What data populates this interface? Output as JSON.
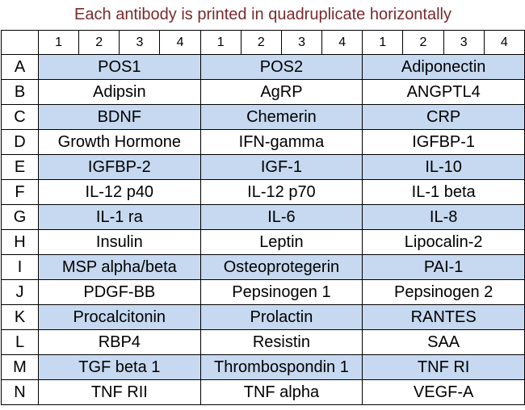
{
  "title": "Each antibody is printed in quadruplicate horizontally",
  "header": [
    [
      "1",
      "2",
      "3",
      "4"
    ],
    [
      "1",
      "2",
      "3",
      "4"
    ],
    [
      "1",
      "2",
      "3",
      "4"
    ]
  ],
  "rows": [
    {
      "label": "A",
      "cells": [
        "POS1",
        "POS2",
        "Adiponectin"
      ]
    },
    {
      "label": "B",
      "cells": [
        "Adipsin",
        "AgRP",
        "ANGPTL4"
      ]
    },
    {
      "label": "C",
      "cells": [
        "BDNF",
        "Chemerin",
        "CRP"
      ]
    },
    {
      "label": "D",
      "cells": [
        "Growth Hormone",
        "IFN-gamma",
        "IGFBP-1"
      ]
    },
    {
      "label": "E",
      "cells": [
        "IGFBP-2",
        "IGF-1",
        "IL-10"
      ]
    },
    {
      "label": "F",
      "cells": [
        "IL-12 p40",
        "IL-12 p70",
        "IL-1 beta"
      ]
    },
    {
      "label": "G",
      "cells": [
        "IL-1 ra",
        "IL-6",
        "IL-8"
      ]
    },
    {
      "label": "H",
      "cells": [
        "Insulin",
        "Leptin",
        "Lipocalin-2"
      ]
    },
    {
      "label": "I",
      "cells": [
        "MSP alpha/beta",
        "Osteoprotegerin",
        "PAI-1"
      ]
    },
    {
      "label": "J",
      "cells": [
        "PDGF-BB",
        "Pepsinogen 1",
        "Pepsinogen 2"
      ]
    },
    {
      "label": "K",
      "cells": [
        "Procalcitonin",
        "Prolactin",
        "RANTES"
      ]
    },
    {
      "label": "L",
      "cells": [
        "RBP4",
        "Resistin",
        "SAA"
      ]
    },
    {
      "label": "M",
      "cells": [
        "TGF beta 1",
        "Thrombospondin 1",
        "TNF RI"
      ]
    },
    {
      "label": "N",
      "cells": [
        "TNF RII",
        "TNF alpha",
        "VEGF-A"
      ]
    }
  ]
}
